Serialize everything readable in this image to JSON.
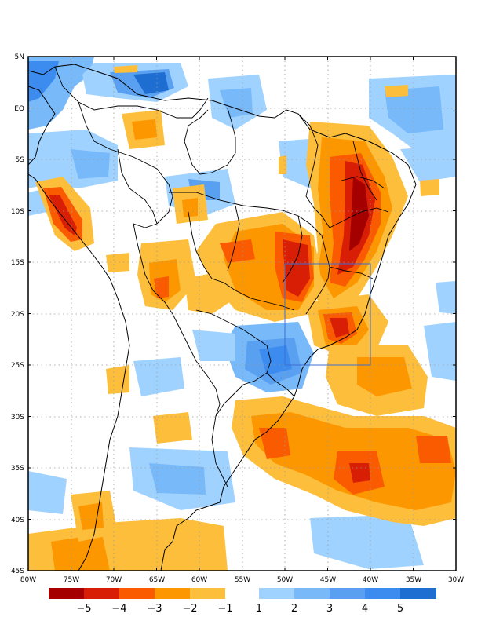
{
  "map": {
    "lat_labels": [
      "5N",
      "EQ",
      "5S",
      "10S",
      "15S",
      "20S",
      "25S",
      "30S",
      "35S",
      "40S",
      "45S"
    ],
    "lon_labels": [
      "80W",
      "75W",
      "70W",
      "65W",
      "60W",
      "55W",
      "50W",
      "45W",
      "40W",
      "35W",
      "30W"
    ]
  },
  "colorbar": {
    "negative": {
      "colors": [
        "#a50000",
        "#d81e05",
        "#fa5a00",
        "#fd9700",
        "#fdbe3c"
      ],
      "labels": [
        "−5",
        "−4",
        "−3",
        "−2",
        "−1"
      ]
    },
    "positive": {
      "colors": [
        "#a0d2ff",
        "#78b9fa",
        "#5aa0f0",
        "#3c8cf0",
        "#1e6ed2"
      ],
      "labels": [
        "1",
        "2",
        "3",
        "4",
        "5"
      ]
    }
  },
  "colors": {
    "frame": "#000000",
    "grid": "#9a9a9a",
    "box": "#3c6ed2"
  }
}
